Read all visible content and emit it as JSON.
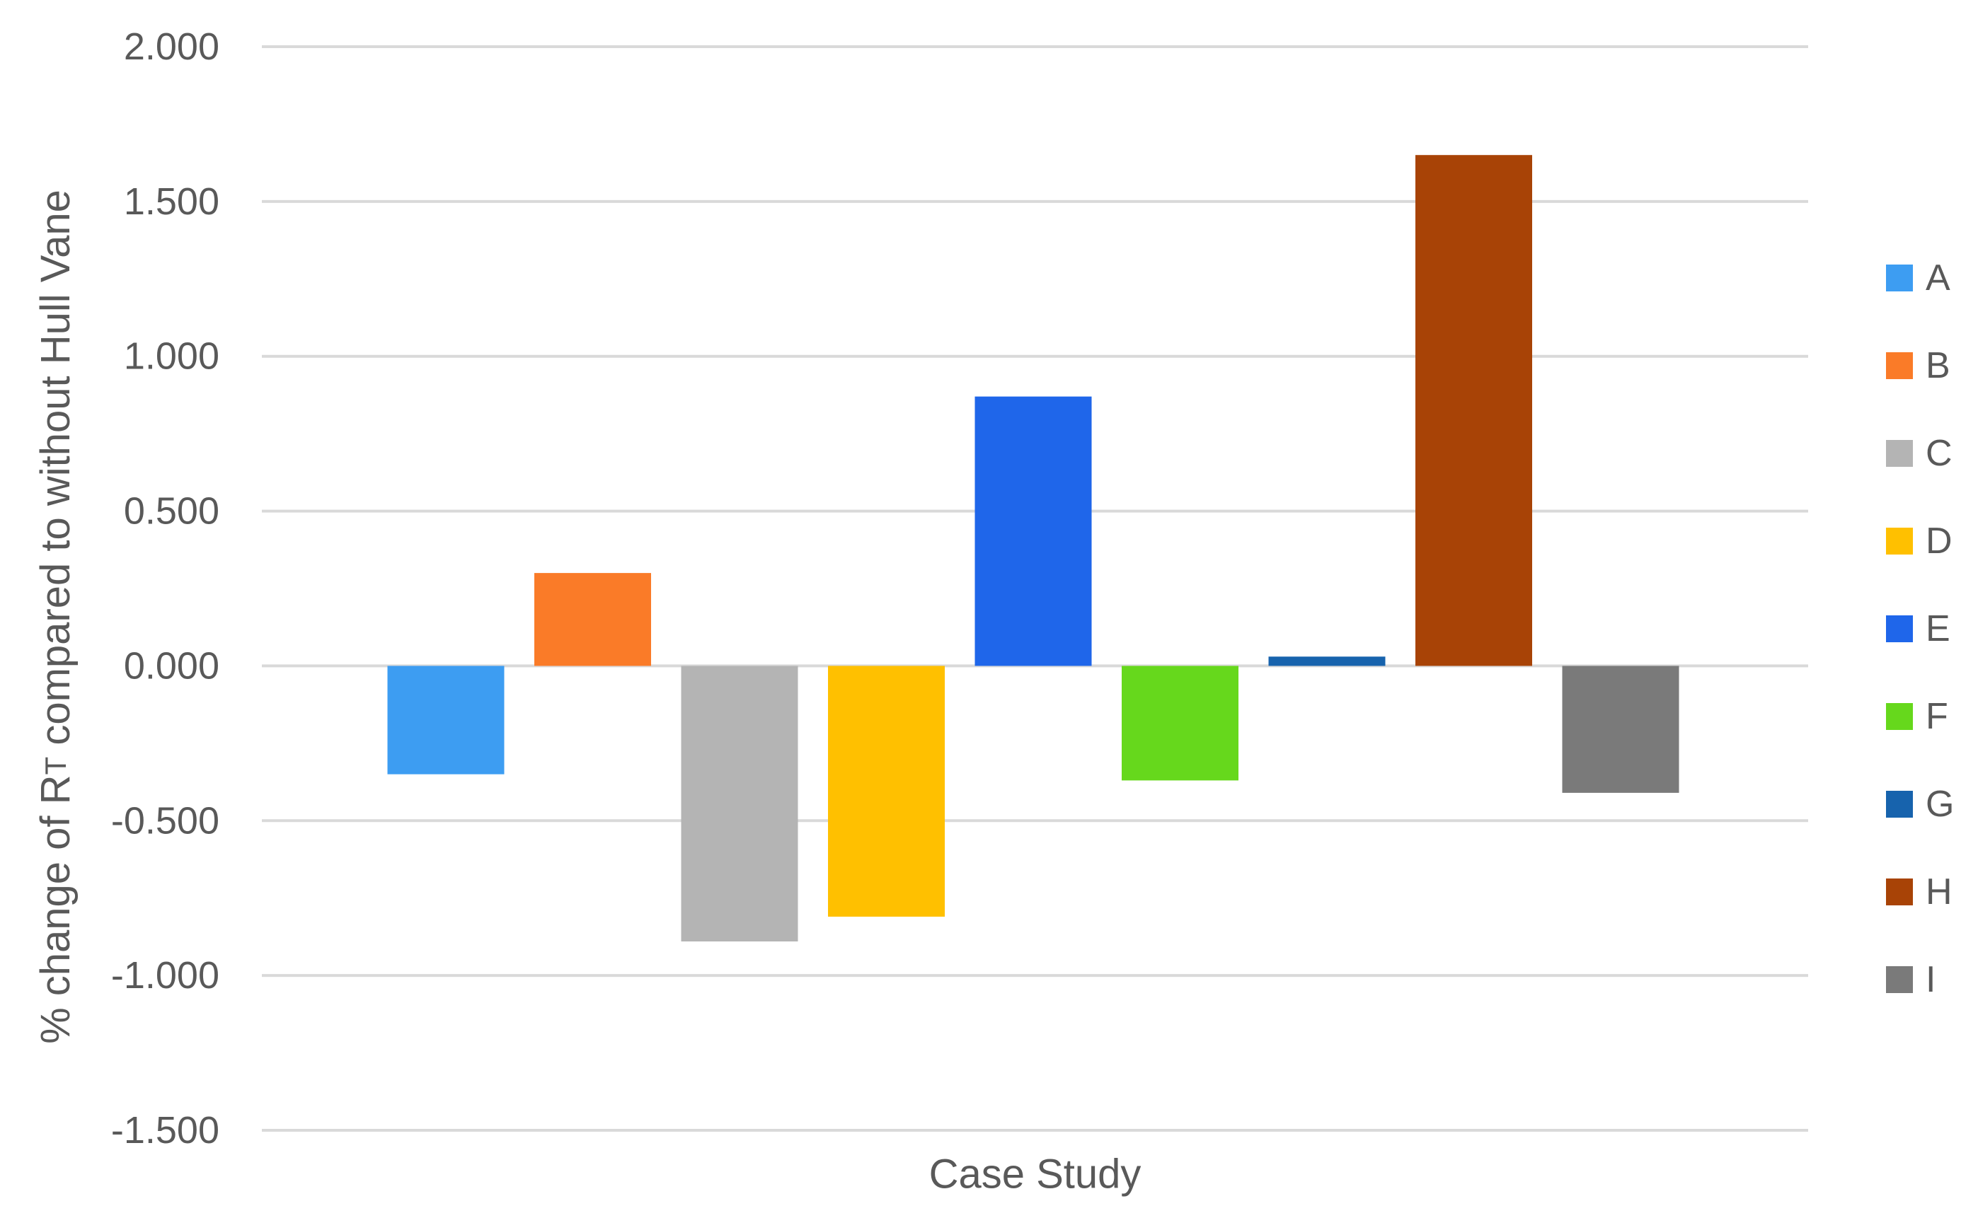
{
  "chart_data": {
    "type": "bar",
    "title": "",
    "xlabel": "Case Study",
    "ylabel": "% change of RT compared to without Hull Vane",
    "ylabel_parts": {
      "before": "% change of R",
      "subscript": "T",
      "after": " compared to without Hull Vane"
    },
    "ylim": [
      -1.5,
      2.0
    ],
    "yticks": [
      2.0,
      1.5,
      1.0,
      0.5,
      0.0,
      -0.5,
      -1.0,
      -1.5
    ],
    "ytick_labels": [
      "2.000",
      "1.500",
      "1.000",
      "0.500",
      "0.000",
      "-0.500",
      "-1.000",
      "-1.500"
    ],
    "grid": true,
    "legend_position": "right",
    "series": [
      {
        "name": "A",
        "value": -0.35,
        "color": "#3d9df2"
      },
      {
        "name": "B",
        "value": 0.3,
        "color": "#fa7b28"
      },
      {
        "name": "C",
        "value": -0.89,
        "color": "#b4b4b4"
      },
      {
        "name": "D",
        "value": -0.81,
        "color": "#ffc000"
      },
      {
        "name": "E",
        "value": 0.87,
        "color": "#1f66ea"
      },
      {
        "name": "F",
        "value": -0.37,
        "color": "#66d81c"
      },
      {
        "name": "G",
        "value": 0.03,
        "color": "#1763ad"
      },
      {
        "name": "H",
        "value": 1.65,
        "color": "#a84306"
      },
      {
        "name": "I",
        "value": -0.41,
        "color": "#7a7a7a"
      }
    ]
  }
}
